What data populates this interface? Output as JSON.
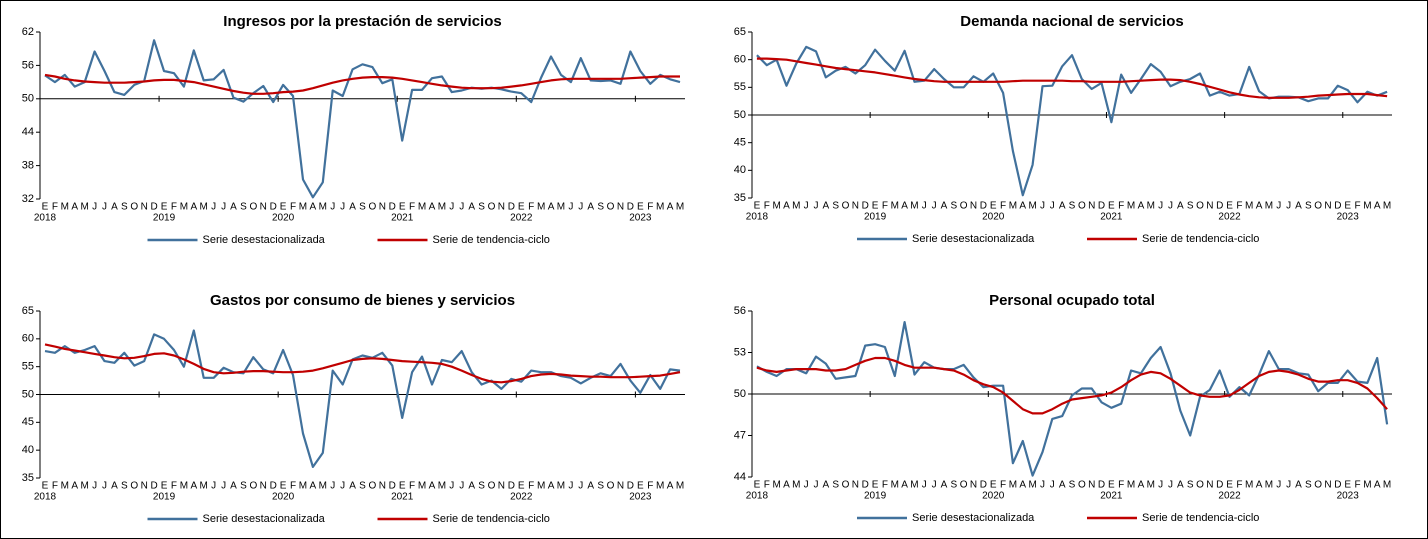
{
  "chart_data": [
    {
      "type": "line",
      "title": "Ingresos por la prestación de servicios",
      "categories": [
        "E",
        "F",
        "M",
        "A",
        "M",
        "J",
        "J",
        "A",
        "S",
        "O",
        "N",
        "D",
        "E",
        "F",
        "M",
        "A",
        "M",
        "J",
        "J",
        "A",
        "S",
        "O",
        "N",
        "D",
        "E",
        "F",
        "M",
        "A",
        "M",
        "J",
        "J",
        "A",
        "S",
        "O",
        "N",
        "D",
        "E",
        "F",
        "M",
        "A",
        "M",
        "J",
        "J",
        "A",
        "S",
        "O",
        "N",
        "D",
        "E",
        "F",
        "M",
        "A",
        "M",
        "J",
        "J",
        "A",
        "S",
        "O",
        "N",
        "D",
        "E",
        "F",
        "M",
        "A",
        "M"
      ],
      "x_groups": [
        "2018",
        "2019",
        "2020",
        "2021",
        "2022",
        "2023"
      ],
      "ylim": [
        32,
        62
      ],
      "yticks": [
        32,
        38,
        44,
        50,
        56,
        62
      ],
      "x_axis_crossing": 50,
      "series": [
        {
          "name": "Serie desestacionalizada",
          "color": "#41719c",
          "values": [
            54.2,
            53.0,
            54.3,
            52.2,
            53.0,
            58.5,
            55.0,
            51.2,
            50.7,
            52.5,
            53.2,
            60.5,
            55.0,
            54.6,
            52.2,
            58.7,
            53.3,
            53.5,
            55.2,
            50.2,
            49.5,
            51.0,
            52.3,
            49.4,
            52.5,
            50.5,
            35.5,
            32.3,
            35.0,
            51.5,
            50.5,
            55.3,
            56.2,
            55.7,
            52.8,
            53.5,
            42.5,
            51.6,
            51.6,
            53.7,
            54.0,
            51.2,
            51.5,
            52.0,
            51.8,
            52.0,
            51.7,
            51.3,
            51.0,
            49.4,
            53.8,
            57.6,
            54.3,
            53.0,
            57.3,
            53.3,
            53.2,
            53.3,
            52.7,
            58.5,
            55.0,
            52.7,
            54.3,
            53.5,
            53.0
          ]
        },
        {
          "name": "Serie de tendencia-ciclo",
          "color": "#c00000",
          "values": [
            54.3,
            54.0,
            53.6,
            53.3,
            53.1,
            53.0,
            52.9,
            52.9,
            52.9,
            53.0,
            53.1,
            53.3,
            53.4,
            53.4,
            53.2,
            53.0,
            52.6,
            52.2,
            51.8,
            51.4,
            51.1,
            50.9,
            50.9,
            51.0,
            51.2,
            51.3,
            51.5,
            51.9,
            52.4,
            52.9,
            53.3,
            53.6,
            53.8,
            53.9,
            53.9,
            53.8,
            53.6,
            53.3,
            53.0,
            52.7,
            52.4,
            52.2,
            52.0,
            51.9,
            51.9,
            51.9,
            52.0,
            52.2,
            52.4,
            52.7,
            53.0,
            53.3,
            53.5,
            53.6,
            53.6,
            53.6,
            53.6,
            53.6,
            53.6,
            53.7,
            53.8,
            53.9,
            54.0,
            54.0,
            54.0
          ]
        }
      ]
    },
    {
      "type": "line",
      "title": "Demanda nacional de servicios",
      "categories": [
        "E",
        "F",
        "M",
        "A",
        "M",
        "J",
        "J",
        "A",
        "S",
        "O",
        "N",
        "D",
        "E",
        "F",
        "M",
        "A",
        "M",
        "J",
        "J",
        "A",
        "S",
        "O",
        "N",
        "D",
        "E",
        "F",
        "M",
        "A",
        "M",
        "J",
        "J",
        "A",
        "S",
        "O",
        "N",
        "D",
        "E",
        "F",
        "M",
        "A",
        "M",
        "J",
        "J",
        "A",
        "S",
        "O",
        "N",
        "D",
        "E",
        "F",
        "M",
        "A",
        "M",
        "J",
        "J",
        "A",
        "S",
        "O",
        "N",
        "D",
        "E",
        "F",
        "M",
        "A",
        "M"
      ],
      "x_groups": [
        "2018",
        "2019",
        "2020",
        "2021",
        "2022",
        "2023"
      ],
      "ylim": [
        35,
        65
      ],
      "yticks": [
        35,
        40,
        45,
        50,
        55,
        60,
        65
      ],
      "x_axis_crossing": 50,
      "series": [
        {
          "name": "Serie desestacionalizada",
          "color": "#41719c",
          "values": [
            60.8,
            59.0,
            60.0,
            55.3,
            59.3,
            62.3,
            61.5,
            56.8,
            58.0,
            58.7,
            57.5,
            59.0,
            61.8,
            59.8,
            58.0,
            61.6,
            56.0,
            56.2,
            58.3,
            56.5,
            55.0,
            55.0,
            57.0,
            56.0,
            57.5,
            54.0,
            43.5,
            35.5,
            41.0,
            55.2,
            55.3,
            58.8,
            60.8,
            56.5,
            54.7,
            55.8,
            48.7,
            57.3,
            54.0,
            56.5,
            59.2,
            57.8,
            55.2,
            56.0,
            56.5,
            57.5,
            53.5,
            54.2,
            53.5,
            53.8,
            58.7,
            54.3,
            53.0,
            53.3,
            53.3,
            53.2,
            52.5,
            53.0,
            53.0,
            55.3,
            54.5,
            52.3,
            54.2,
            53.5,
            54.2
          ]
        },
        {
          "name": "Serie de tendencia-ciclo",
          "color": "#c00000",
          "values": [
            60.2,
            60.2,
            60.1,
            60.0,
            59.7,
            59.4,
            59.1,
            58.8,
            58.5,
            58.3,
            58.1,
            57.9,
            57.7,
            57.4,
            57.1,
            56.8,
            56.5,
            56.3,
            56.1,
            56.0,
            56.0,
            56.0,
            56.0,
            56.0,
            56.0,
            56.0,
            56.1,
            56.2,
            56.2,
            56.2,
            56.2,
            56.2,
            56.1,
            56.1,
            56.0,
            56.0,
            56.0,
            56.0,
            56.1,
            56.2,
            56.3,
            56.4,
            56.4,
            56.3,
            56.0,
            55.6,
            55.1,
            54.6,
            54.1,
            53.7,
            53.4,
            53.2,
            53.1,
            53.1,
            53.1,
            53.2,
            53.3,
            53.5,
            53.6,
            53.7,
            53.8,
            53.8,
            53.8,
            53.6,
            53.4
          ]
        }
      ]
    },
    {
      "type": "line",
      "title": "Gastos por consumo de bienes y servicios",
      "categories": [
        "E",
        "F",
        "M",
        "A",
        "M",
        "J",
        "J",
        "A",
        "S",
        "O",
        "N",
        "D",
        "E",
        "F",
        "M",
        "A",
        "M",
        "J",
        "J",
        "A",
        "S",
        "O",
        "N",
        "D",
        "E",
        "F",
        "M",
        "A",
        "M",
        "J",
        "J",
        "A",
        "S",
        "O",
        "N",
        "D",
        "E",
        "F",
        "M",
        "A",
        "M",
        "J",
        "J",
        "A",
        "S",
        "O",
        "N",
        "D",
        "E",
        "F",
        "M",
        "A",
        "M",
        "J",
        "J",
        "A",
        "S",
        "O",
        "N",
        "D",
        "E",
        "F",
        "M",
        "A",
        "M"
      ],
      "x_groups": [
        "2018",
        "2019",
        "2020",
        "2021",
        "2022",
        "2023"
      ],
      "ylim": [
        35,
        65
      ],
      "yticks": [
        35,
        40,
        45,
        50,
        55,
        60,
        65
      ],
      "x_axis_crossing": 50,
      "series": [
        {
          "name": "Serie desestacionalizada",
          "color": "#41719c",
          "values": [
            57.8,
            57.5,
            58.7,
            57.5,
            58.0,
            58.7,
            56.0,
            55.7,
            57.5,
            55.2,
            56.0,
            60.8,
            60.0,
            58.0,
            55.0,
            61.5,
            53.0,
            53.0,
            54.8,
            54.0,
            53.8,
            56.7,
            54.5,
            53.8,
            58.0,
            53.5,
            43.0,
            37.0,
            39.5,
            54.3,
            51.8,
            56.3,
            57.0,
            56.6,
            57.5,
            55.2,
            45.8,
            54.0,
            56.8,
            51.8,
            56.2,
            55.8,
            57.8,
            54.0,
            51.8,
            52.5,
            51.0,
            52.8,
            52.3,
            54.3,
            54.0,
            54.0,
            53.3,
            53.0,
            52.0,
            53.0,
            53.8,
            53.3,
            55.5,
            52.5,
            50.3,
            53.5,
            51.0,
            54.5,
            54.3
          ]
        },
        {
          "name": "Serie de tendencia-ciclo",
          "color": "#c00000",
          "values": [
            59.0,
            58.6,
            58.2,
            57.9,
            57.6,
            57.3,
            57.0,
            56.7,
            56.5,
            56.6,
            56.9,
            57.3,
            57.4,
            57.0,
            56.3,
            55.5,
            54.6,
            54.0,
            53.8,
            53.9,
            54.1,
            54.2,
            54.2,
            54.1,
            54.0,
            54.0,
            54.1,
            54.3,
            54.7,
            55.2,
            55.7,
            56.2,
            56.4,
            56.5,
            56.4,
            56.2,
            56.0,
            55.9,
            55.8,
            55.7,
            55.5,
            55.0,
            54.3,
            53.5,
            52.8,
            52.3,
            52.2,
            52.4,
            52.8,
            53.3,
            53.6,
            53.7,
            53.6,
            53.4,
            53.3,
            53.2,
            53.2,
            53.1,
            53.1,
            53.1,
            53.2,
            53.3,
            53.4,
            53.7,
            54.0
          ]
        }
      ]
    },
    {
      "type": "line",
      "title": "Personal ocupado total",
      "categories": [
        "E",
        "F",
        "M",
        "A",
        "M",
        "J",
        "J",
        "A",
        "S",
        "O",
        "N",
        "D",
        "E",
        "F",
        "M",
        "A",
        "M",
        "J",
        "J",
        "A",
        "S",
        "O",
        "N",
        "D",
        "E",
        "F",
        "M",
        "A",
        "M",
        "J",
        "J",
        "A",
        "S",
        "O",
        "N",
        "D",
        "E",
        "F",
        "M",
        "A",
        "M",
        "J",
        "J",
        "A",
        "S",
        "O",
        "N",
        "D",
        "E",
        "F",
        "M",
        "A",
        "M",
        "J",
        "J",
        "A",
        "S",
        "O",
        "N",
        "D",
        "E",
        "F",
        "M",
        "A",
        "M"
      ],
      "x_groups": [
        "2018",
        "2019",
        "2020",
        "2021",
        "2022",
        "2023"
      ],
      "ylim": [
        44,
        56
      ],
      "yticks": [
        44,
        47,
        50,
        53,
        56
      ],
      "x_axis_crossing": 50,
      "series": [
        {
          "name": "Serie desestacionalizada",
          "color": "#41719c",
          "values": [
            52.0,
            51.6,
            51.3,
            51.8,
            51.8,
            51.5,
            52.7,
            52.2,
            51.1,
            51.2,
            51.3,
            53.5,
            53.6,
            53.4,
            51.3,
            55.2,
            51.4,
            52.3,
            51.9,
            51.8,
            51.8,
            52.1,
            51.2,
            50.5,
            50.6,
            50.6,
            45.0,
            46.6,
            44.1,
            45.8,
            48.2,
            48.4,
            49.9,
            50.4,
            50.4,
            49.4,
            49.0,
            49.3,
            51.7,
            51.5,
            52.6,
            53.4,
            51.5,
            48.8,
            47.0,
            49.8,
            50.3,
            51.7,
            49.8,
            50.5,
            49.9,
            51.4,
            53.1,
            51.8,
            51.8,
            51.5,
            51.4,
            50.2,
            50.8,
            50.8,
            51.7,
            50.9,
            50.8,
            52.6,
            47.8
          ]
        },
        {
          "name": "Serie de tendencia-ciclo",
          "color": "#c00000",
          "values": [
            51.9,
            51.7,
            51.6,
            51.7,
            51.8,
            51.8,
            51.8,
            51.7,
            51.7,
            51.8,
            52.1,
            52.4,
            52.6,
            52.6,
            52.4,
            52.1,
            51.9,
            51.9,
            51.9,
            51.8,
            51.7,
            51.4,
            51.0,
            50.7,
            50.5,
            50.1,
            49.5,
            48.9,
            48.6,
            48.6,
            48.9,
            49.3,
            49.6,
            49.7,
            49.8,
            49.9,
            50.1,
            50.5,
            51.0,
            51.4,
            51.6,
            51.5,
            51.1,
            50.6,
            50.1,
            49.9,
            49.8,
            49.8,
            49.9,
            50.3,
            50.8,
            51.3,
            51.6,
            51.7,
            51.6,
            51.4,
            51.1,
            50.9,
            50.9,
            51.0,
            51.0,
            50.8,
            50.4,
            49.7,
            48.9
          ]
        }
      ]
    }
  ]
}
